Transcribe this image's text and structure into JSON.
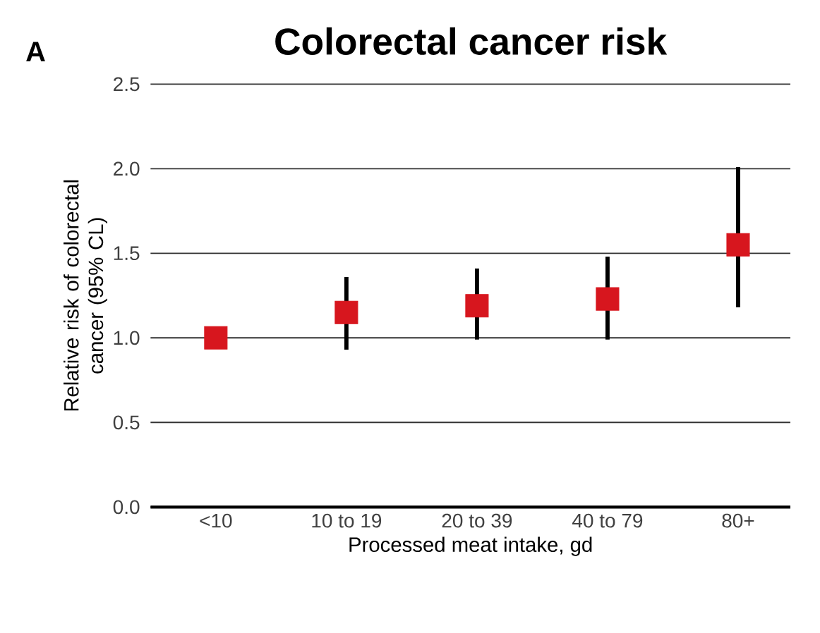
{
  "chart_data": {
    "type": "scatter",
    "title": "Colorectal cancer risk",
    "categories": [
      "<10",
      "10 to 19",
      "20 to 39",
      "40 to 79",
      "80+"
    ],
    "values": [
      1.0,
      1.15,
      1.19,
      1.23,
      1.55
    ],
    "errors": [
      null,
      [
        0.93,
        1.36
      ],
      [
        0.99,
        1.41
      ],
      [
        0.99,
        1.48
      ],
      [
        1.18,
        2.01
      ]
    ],
    "color": "#d7161e",
    "marker": "square",
    "xlabel": "Processed meat intake, gd",
    "ylabel": "Relative risk of colorectal cancer (95% CL)",
    "ylim": [
      0,
      2.5
    ],
    "yticks": [
      {
        "value": 0,
        "label": "0.0"
      },
      {
        "value": 0.5,
        "label": "0.5"
      },
      {
        "value": 1,
        "label": "1.0"
      },
      {
        "value": 1.5,
        "label": "1.5"
      },
      {
        "value": 2,
        "label": "2.0"
      },
      {
        "value": 2.5,
        "label": "2.5"
      }
    ],
    "grid": "y",
    "annotations": [
      "A"
    ]
  }
}
